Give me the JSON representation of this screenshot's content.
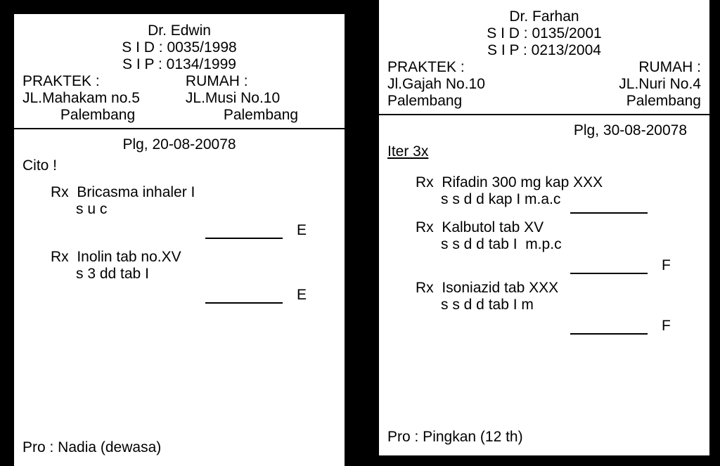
{
  "left": {
    "doctor": "Dr. Edwin",
    "sid": "S I D : 0035/1998",
    "sip": "S I P : 0134/1999",
    "praktek_label": "PRAKTEK :",
    "rumah_label": "RUMAH :",
    "praktek_addr1": "JL.Mahakam no.5",
    "rumah_addr1": "JL.Musi No.10",
    "praktek_city": "Palembang",
    "rumah_city": "Palembang",
    "date": "Plg, 20-08-20078",
    "cito": "Cito !",
    "rx1_line": "Rx  Bricasma inhaler I",
    "rx1_sig": "s u c",
    "rx1_mark": "E",
    "rx2_line": "Rx  Inolin tab no.XV",
    "rx2_sig": "s 3 dd tab I",
    "rx2_mark": "E",
    "pro": "Pro : Nadia (dewasa)"
  },
  "right": {
    "doctor": "Dr. Farhan",
    "sid": "S I D : 0135/2001",
    "sip": "S I P : 0213/2004",
    "praktek_label": "PRAKTEK :",
    "rumah_label": "RUMAH :",
    "praktek_addr1": "Jl.Gajah No.10",
    "rumah_addr1": "JL.Nuri No.4",
    "praktek_city": "Palembang",
    "rumah_city": "Palembang",
    "date": "Plg, 30-08-20078",
    "iter": "Iter 3x ",
    "rx1_line": "Rx  Rifadin 300 mg kap XXX",
    "rx1_sig": "s s d d kap I m.a.c",
    "rx1_mark": "",
    "rx2_line": "Rx  Kalbutol tab XV",
    "rx2_sig": "s s d d tab I  m.p.c",
    "rx2_mark": "F",
    "rx3_line": "Rx  Isoniazid tab XXX",
    "rx3_sig": "s s d d tab I m",
    "rx3_mark": "F",
    "pro": "Pro : Pingkan (12 th)",
    "edge": "F"
  }
}
